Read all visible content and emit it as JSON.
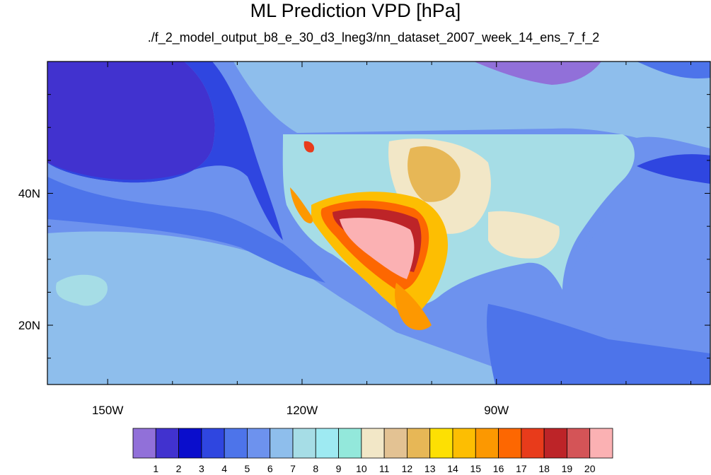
{
  "title": "ML Prediction VPD [hPa]",
  "subtitle": "./f_2_model_output_b8_e_30_d3_lneg3/nn_dataset_2007_week_14_ens_7_f_2",
  "axes": {
    "lon_ticks": [
      {
        "value": -150,
        "label": "150W"
      },
      {
        "value": -120,
        "label": "120W"
      },
      {
        "value": -90,
        "label": "90W"
      }
    ],
    "lat_ticks": [
      {
        "value": 40,
        "label": "40N"
      },
      {
        "value": 20,
        "label": "20N"
      }
    ],
    "lon_range": [
      -159.3,
      -57
    ],
    "lat_range": [
      11,
      60
    ]
  },
  "colorbar": {
    "colors": [
      "#9170d9",
      "#4132cf",
      "#0a0dcc",
      "#2f46e0",
      "#4d74ea",
      "#6d92ee",
      "#8ebeec",
      "#a6dde6",
      "#9eeaf2",
      "#93e8db",
      "#f2e7c7",
      "#e3c293",
      "#e7b756",
      "#fde003",
      "#fdbe02",
      "#fc9801",
      "#fd6701",
      "#e83b1b",
      "#bd2428",
      "#d45457",
      "#fbb1b3"
    ],
    "labels": [
      "1",
      "2",
      "3",
      "4",
      "5",
      "6",
      "7",
      "8",
      "9",
      "10",
      "11",
      "12",
      "13",
      "14",
      "15",
      "16",
      "17",
      "18",
      "19",
      "20"
    ]
  }
}
